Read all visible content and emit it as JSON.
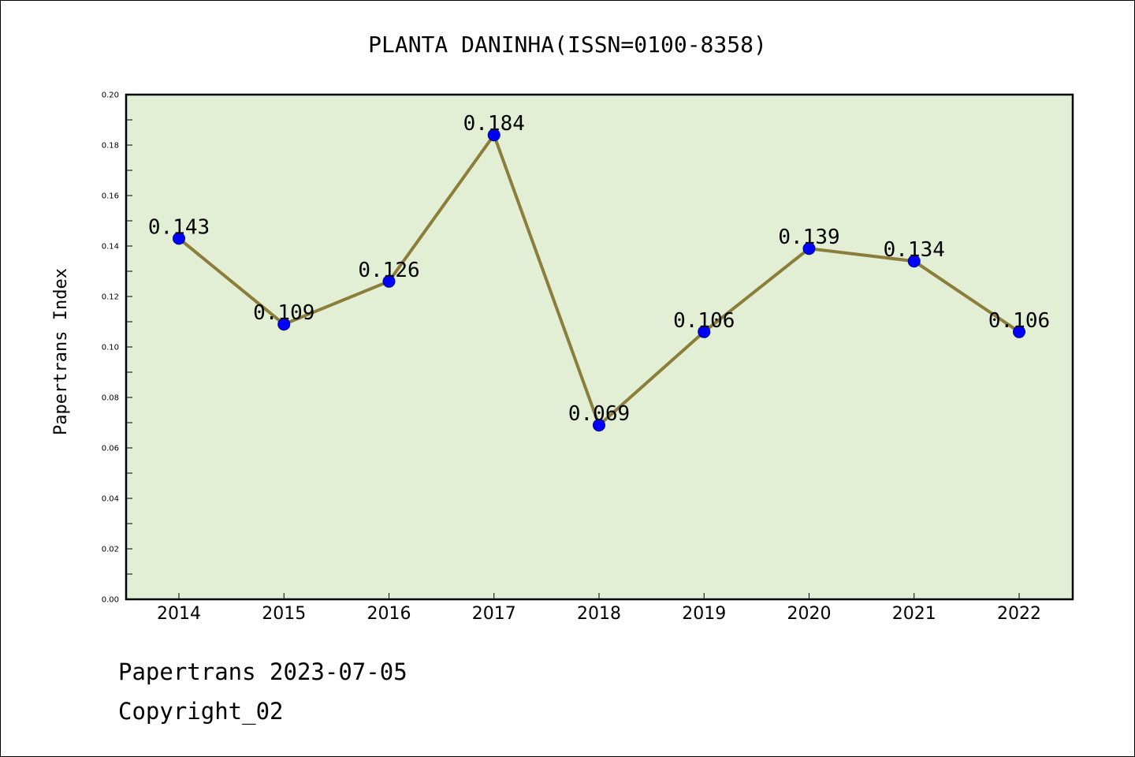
{
  "chart_data": {
    "type": "line",
    "title": "PLANTA DANINHA(ISSN=0100-8358)",
    "xlabel": "",
    "ylabel": "Papertrans Index",
    "categories": [
      "2014",
      "2015",
      "2016",
      "2017",
      "2018",
      "2019",
      "2020",
      "2021",
      "2022"
    ],
    "values": [
      0.143,
      0.109,
      0.126,
      0.184,
      0.069,
      0.106,
      0.139,
      0.134,
      0.106
    ],
    "data_labels": [
      "0.143",
      "0.109",
      "0.126",
      "0.184",
      "0.069",
      "0.106",
      "0.139",
      "0.134",
      "0.106"
    ],
    "ylim": [
      0.0,
      0.2
    ],
    "yticks": [
      "0.00",
      "0.02",
      "0.04",
      "0.06",
      "0.08",
      "0.10",
      "0.12",
      "0.14",
      "0.16",
      "0.18",
      "0.20"
    ],
    "grid": false,
    "colors": {
      "plot_background": "#e2efd4",
      "line": "#8b7d3a",
      "marker": "#0000ff"
    }
  },
  "footer": {
    "line1": "Papertrans 2023-07-05",
    "line2": "Copyright_02"
  }
}
